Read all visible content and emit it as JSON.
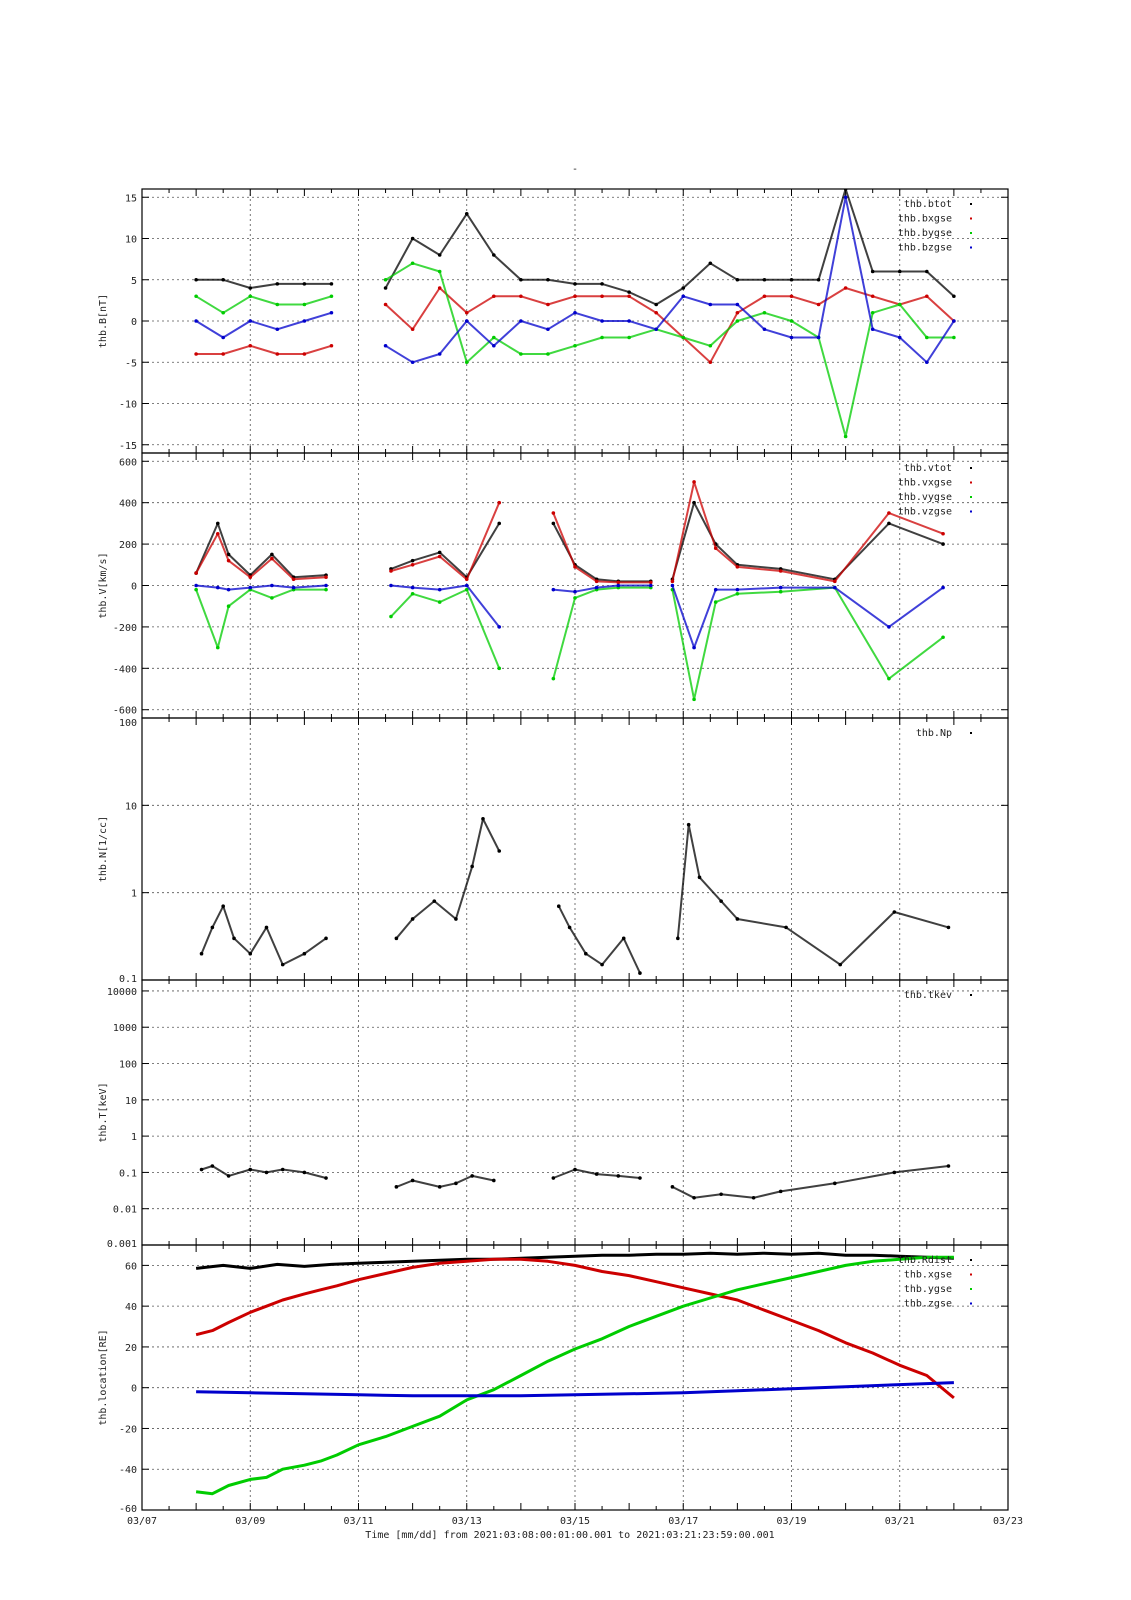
{
  "figure": {
    "title": "-",
    "xlabel": "Time [mm/dd]  from 2021:03:08:00:01:00.001  to  2021:03:21:23:59:00.001",
    "x_ticks": [
      "03/07",
      "03/09",
      "03/11",
      "03/13",
      "03/15",
      "03/17",
      "03/19",
      "03/21",
      "03/23"
    ],
    "x_range_days": [
      7,
      23
    ]
  },
  "colors": {
    "black": "#000000",
    "red": "#cc0000",
    "green": "#00cc00",
    "blue": "#0000cc"
  },
  "chart_data": [
    {
      "type": "scatter",
      "ylabel": "thb.B[nT]",
      "ylim": [
        -16,
        16
      ],
      "y_ticks": [
        15,
        10,
        5,
        0,
        -5,
        -10,
        -15
      ],
      "grid": true,
      "legend_position": "top-right",
      "series": [
        {
          "name": "thb.btot",
          "color": "black",
          "x": [
            8.0,
            8.5,
            9.0,
            9.5,
            10.0,
            10.5,
            null,
            11.5,
            12.0,
            12.5,
            13.0,
            13.5,
            14.0,
            14.5,
            15.0,
            15.5,
            16.0,
            16.5,
            17.0,
            17.5,
            18.0,
            18.5,
            19.0,
            19.5,
            20.0,
            20.5,
            21.0,
            21.5,
            22.0
          ],
          "y": [
            5,
            5,
            4,
            4.5,
            4.5,
            4.5,
            null,
            4,
            10,
            8,
            13,
            8,
            5,
            5,
            4.5,
            4.5,
            3.5,
            2,
            4,
            7,
            5,
            5,
            5,
            5,
            16,
            6,
            6,
            6,
            3
          ]
        },
        {
          "name": "thb.bxgse",
          "color": "red",
          "x": [
            8.0,
            8.5,
            9.0,
            9.5,
            10.0,
            10.5,
            null,
            11.5,
            12.0,
            12.5,
            13.0,
            13.5,
            14.0,
            14.5,
            15.0,
            15.5,
            16.0,
            16.5,
            17.0,
            17.5,
            18.0,
            18.5,
            19.0,
            19.5,
            20.0,
            20.5,
            21.0,
            21.5,
            22.0
          ],
          "y": [
            -4,
            -4,
            -3,
            -4,
            -4,
            -3,
            null,
            2,
            -1,
            4,
            1,
            3,
            3,
            2,
            3,
            3,
            3,
            1,
            -2,
            -5,
            1,
            3,
            3,
            2,
            4,
            3,
            2,
            3,
            0
          ]
        },
        {
          "name": "thb.bygse",
          "color": "green",
          "x": [
            8.0,
            8.5,
            9.0,
            9.5,
            10.0,
            10.5,
            null,
            11.5,
            12.0,
            12.5,
            13.0,
            13.5,
            14.0,
            14.5,
            15.0,
            15.5,
            16.0,
            16.5,
            17.0,
            17.5,
            18.0,
            18.5,
            19.0,
            19.5,
            20.0,
            20.5,
            21.0,
            21.5,
            22.0
          ],
          "y": [
            3,
            1,
            3,
            2,
            2,
            3,
            null,
            5,
            7,
            6,
            -5,
            -2,
            -4,
            -4,
            -3,
            -2,
            -2,
            -1,
            -2,
            -3,
            0,
            1,
            0,
            -2,
            -14,
            1,
            2,
            -2,
            -2
          ]
        },
        {
          "name": "thb.bzgse",
          "color": "blue",
          "x": [
            8.0,
            8.5,
            9.0,
            9.5,
            10.0,
            10.5,
            null,
            11.5,
            12.0,
            12.5,
            13.0,
            13.5,
            14.0,
            14.5,
            15.0,
            15.5,
            16.0,
            16.5,
            17.0,
            17.5,
            18.0,
            18.5,
            19.0,
            19.5,
            20.0,
            20.5,
            21.0,
            21.5,
            22.0
          ],
          "y": [
            0,
            -2,
            0,
            -1,
            0,
            1,
            null,
            -3,
            -5,
            -4,
            0,
            -3,
            0,
            -1,
            1,
            0,
            0,
            -1,
            3,
            2,
            2,
            -1,
            -2,
            -2,
            15,
            -1,
            -2,
            -5,
            0
          ]
        }
      ]
    },
    {
      "type": "scatter",
      "ylabel": "thb.V[km/s]",
      "ylim": [
        -640,
        640
      ],
      "y_ticks": [
        600,
        400,
        200,
        0,
        -200,
        -400,
        -600
      ],
      "grid": true,
      "legend_position": "top-right",
      "series": [
        {
          "name": "thb.vtot",
          "color": "black",
          "x": [
            8.0,
            8.4,
            8.6,
            9.0,
            9.4,
            9.8,
            10.4,
            null,
            11.6,
            12.0,
            12.5,
            13.0,
            13.6,
            null,
            14.6,
            15.0,
            15.4,
            15.8,
            16.4,
            null,
            16.8,
            17.2,
            17.6,
            18.0,
            18.8,
            19.8,
            20.8,
            21.8
          ],
          "y": [
            60,
            300,
            150,
            50,
            150,
            40,
            50,
            null,
            80,
            120,
            160,
            40,
            300,
            null,
            300,
            100,
            30,
            20,
            20,
            null,
            30,
            400,
            200,
            100,
            80,
            30,
            300,
            200
          ]
        },
        {
          "name": "thb.vxgse",
          "color": "red",
          "x": [
            8.0,
            8.4,
            8.6,
            9.0,
            9.4,
            9.8,
            10.4,
            null,
            11.6,
            12.0,
            12.5,
            13.0,
            13.6,
            null,
            14.6,
            15.0,
            15.4,
            15.8,
            16.4,
            null,
            16.8,
            17.2,
            17.6,
            18.0,
            18.8,
            19.8,
            20.8,
            21.8
          ],
          "y": [
            60,
            250,
            120,
            40,
            130,
            30,
            40,
            null,
            70,
            100,
            140,
            30,
            400,
            null,
            350,
            90,
            20,
            15,
            15,
            null,
            20,
            500,
            180,
            90,
            70,
            20,
            350,
            250
          ]
        },
        {
          "name": "thb.vygse",
          "color": "green",
          "x": [
            8.0,
            8.4,
            8.6,
            9.0,
            9.4,
            9.8,
            10.4,
            null,
            11.6,
            12.0,
            12.5,
            13.0,
            13.6,
            null,
            14.6,
            15.0,
            15.4,
            15.8,
            16.4,
            null,
            16.8,
            17.2,
            17.6,
            18.0,
            18.8,
            19.8,
            20.8,
            21.8
          ],
          "y": [
            -20,
            -300,
            -100,
            -20,
            -60,
            -20,
            -20,
            null,
            -150,
            -40,
            -80,
            -20,
            -400,
            null,
            -450,
            -60,
            -20,
            -10,
            -10,
            null,
            -20,
            -550,
            -80,
            -40,
            -30,
            -10,
            -450,
            -250
          ]
        },
        {
          "name": "thb.vzgse",
          "color": "blue",
          "x": [
            8.0,
            8.4,
            8.6,
            9.0,
            9.4,
            9.8,
            10.4,
            null,
            11.6,
            12.0,
            12.5,
            13.0,
            13.6,
            null,
            14.6,
            15.0,
            15.4,
            15.8,
            16.4,
            null,
            16.8,
            17.2,
            17.6,
            18.0,
            18.8,
            19.8,
            20.8,
            21.8
          ],
          "y": [
            0,
            -10,
            -20,
            -10,
            0,
            -10,
            0,
            null,
            0,
            -10,
            -20,
            0,
            -200,
            null,
            -20,
            -30,
            -10,
            0,
            0,
            null,
            0,
            -300,
            -20,
            -20,
            -10,
            -10,
            -200,
            -10
          ]
        }
      ]
    },
    {
      "type": "scatter",
      "ylabel": "thb.N[1/cc]",
      "yscale": "log",
      "ylim": [
        0.1,
        100
      ],
      "y_ticks": [
        "100",
        "10",
        "1",
        "0.1"
      ],
      "y_tick_values": [
        100,
        10,
        1,
        0.1
      ],
      "grid": true,
      "legend_position": "top-right",
      "series": [
        {
          "name": "thb.Np",
          "color": "black",
          "x": [
            8.1,
            8.3,
            8.5,
            8.7,
            9.0,
            9.3,
            9.6,
            10.0,
            10.4,
            null,
            11.7,
            12.0,
            12.4,
            12.8,
            13.1,
            13.3,
            13.6,
            null,
            14.7,
            14.9,
            15.2,
            15.5,
            15.9,
            16.2,
            null,
            16.9,
            17.1,
            17.3,
            17.7,
            18.0,
            18.9,
            19.9,
            20.9,
            21.9
          ],
          "y": [
            0.2,
            0.4,
            0.7,
            0.3,
            0.2,
            0.4,
            0.15,
            0.2,
            0.3,
            null,
            0.3,
            0.5,
            0.8,
            0.5,
            2,
            7,
            3,
            null,
            0.7,
            0.4,
            0.2,
            0.15,
            0.3,
            0.12,
            null,
            0.3,
            6,
            1.5,
            0.8,
            0.5,
            0.4,
            0.15,
            0.6,
            0.4
          ]
        }
      ]
    },
    {
      "type": "scatter",
      "ylabel": "thb.T[keV]",
      "yscale": "log",
      "ylim": [
        0.001,
        20000
      ],
      "y_ticks": [
        "10000",
        "1000",
        "100",
        "10",
        "1",
        "0.1",
        "0.01",
        "0.001"
      ],
      "y_tick_values": [
        10000,
        1000,
        100,
        10,
        1,
        0.1,
        0.01,
        0.001
      ],
      "grid": true,
      "legend_position": "top-right",
      "series": [
        {
          "name": "thb.tkev",
          "color": "black",
          "x": [
            8.1,
            8.3,
            8.6,
            9.0,
            9.3,
            9.6,
            10.0,
            10.4,
            null,
            11.7,
            12.0,
            12.5,
            12.8,
            13.1,
            13.5,
            null,
            14.6,
            15.0,
            15.4,
            15.8,
            16.2,
            null,
            16.8,
            17.2,
            17.7,
            18.3,
            18.8,
            19.8,
            20.9,
            21.9
          ],
          "y": [
            0.12,
            0.15,
            0.08,
            0.12,
            0.1,
            0.12,
            0.1,
            0.07,
            null,
            0.04,
            0.06,
            0.04,
            0.05,
            0.08,
            0.06,
            null,
            0.07,
            0.12,
            0.09,
            0.08,
            0.07,
            null,
            0.04,
            0.02,
            0.025,
            0.02,
            0.03,
            0.05,
            0.1,
            0.15
          ]
        }
      ]
    },
    {
      "type": "line",
      "ylabel": "thb.location[RE]",
      "ylim": [
        -60,
        70
      ],
      "y_ticks": [
        60,
        40,
        20,
        0,
        -20,
        -40,
        -60
      ],
      "grid": true,
      "legend_position": "top-right",
      "series": [
        {
          "name": "thb.Rdist",
          "color": "black",
          "x": [
            8.0,
            8.5,
            9.0,
            9.5,
            10.0,
            10.5,
            11.0,
            11.5,
            12.0,
            12.5,
            13.0,
            13.5,
            14.0,
            14.5,
            15.0,
            15.5,
            16.0,
            16.5,
            17.0,
            17.5,
            18.0,
            18.5,
            19.0,
            19.5,
            20.0,
            20.5,
            21.0,
            21.5,
            22.0
          ],
          "y": [
            58.5,
            60,
            58.5,
            60.5,
            59.5,
            60.5,
            61,
            61.5,
            62,
            62.5,
            63,
            63,
            63.5,
            64,
            64.5,
            65,
            65,
            65.5,
            65.5,
            66,
            65.5,
            66,
            65.5,
            66,
            65,
            65,
            64.5,
            64,
            63.5
          ]
        },
        {
          "name": "thb.xgse",
          "color": "red",
          "x": [
            8.0,
            8.3,
            8.6,
            9.0,
            9.3,
            9.6,
            10.0,
            10.3,
            10.6,
            11.0,
            11.5,
            12.0,
            12.5,
            13.0,
            13.5,
            14.0,
            14.5,
            15.0,
            15.5,
            16.0,
            16.5,
            17.0,
            17.5,
            18.0,
            18.5,
            19.0,
            19.5,
            20.0,
            20.5,
            21.0,
            21.5,
            22.0
          ],
          "y": [
            26,
            28,
            32,
            37,
            40,
            43,
            46,
            48,
            50,
            53,
            56,
            59,
            61,
            62,
            63,
            63,
            62,
            60,
            57,
            55,
            52,
            49,
            46,
            43,
            38,
            33,
            28,
            22,
            17,
            11,
            6,
            -5
          ]
        },
        {
          "name": "thb.ygse",
          "color": "green",
          "x": [
            8.0,
            8.3,
            8.6,
            9.0,
            9.3,
            9.6,
            10.0,
            10.3,
            10.6,
            11.0,
            11.5,
            12.0,
            12.5,
            13.0,
            13.5,
            14.0,
            14.5,
            15.0,
            15.5,
            16.0,
            16.5,
            17.0,
            17.5,
            18.0,
            18.5,
            19.0,
            19.5,
            20.0,
            20.5,
            21.0,
            21.5,
            22.0
          ],
          "y": [
            -51,
            -52,
            -48,
            -45,
            -44,
            -40,
            -38,
            -36,
            -33,
            -28,
            -24,
            -19,
            -14,
            -6,
            -1,
            6,
            13,
            19,
            24,
            30,
            35,
            40,
            44,
            48,
            51,
            54,
            57,
            60,
            62,
            63,
            64,
            64
          ]
        },
        {
          "name": "thb.zgse",
          "color": "blue",
          "x": [
            8.0,
            9.0,
            10.0,
            11.0,
            12.0,
            13.0,
            14.0,
            15.0,
            16.0,
            17.0,
            18.0,
            19.0,
            20.0,
            21.0,
            22.0
          ],
          "y": [
            -2,
            -2.5,
            -3,
            -3.5,
            -4,
            -4,
            -4,
            -3.5,
            -3,
            -2.5,
            -1.5,
            -0.5,
            0.5,
            1.5,
            2.5
          ]
        }
      ]
    }
  ]
}
